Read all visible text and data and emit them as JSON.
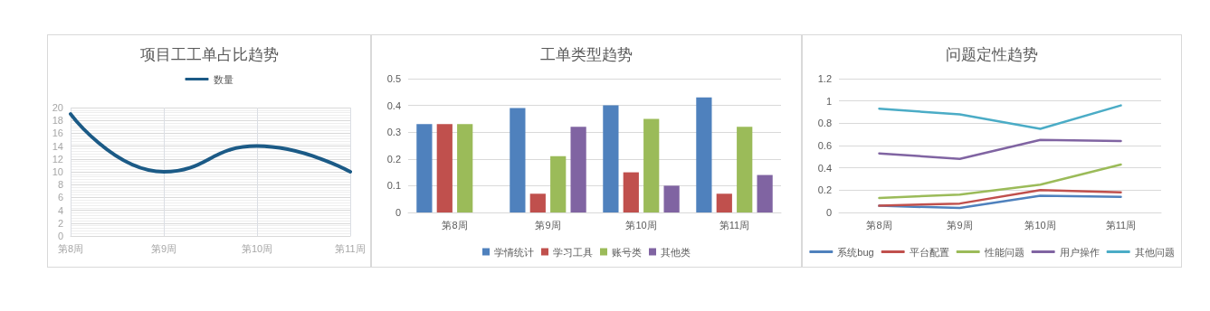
{
  "chart_data": [
    {
      "type": "line",
      "title": "项目工工单占比趋势",
      "categories": [
        "第8周",
        "第9周",
        "第10周",
        "第11周"
      ],
      "series": [
        {
          "name": "数量",
          "color": "#1b5a86",
          "values": [
            19,
            10,
            14,
            10
          ]
        }
      ],
      "ylim": [
        0,
        20
      ],
      "yticks": [
        0,
        2,
        4,
        6,
        8,
        10,
        12,
        14,
        16,
        18,
        20
      ],
      "grid": true,
      "legend": "top",
      "marker": "none",
      "line_style": "solid"
    },
    {
      "type": "bar",
      "title": "工单类型趋势",
      "categories": [
        "第8周",
        "第9周",
        "第10周",
        "第11周"
      ],
      "series": [
        {
          "name": "学情统计",
          "color": "#4f81bd",
          "values": [
            0.33,
            0.39,
            0.4,
            0.43
          ]
        },
        {
          "name": "学习工具",
          "color": "#c0504d",
          "values": [
            0.33,
            0.07,
            0.15,
            0.07
          ]
        },
        {
          "name": "账号类",
          "color": "#9bbb59",
          "values": [
            0.33,
            0.21,
            0.35,
            0.32
          ]
        },
        {
          "name": "其他类",
          "color": "#8064a2",
          "values": [
            0,
            0.32,
            0.1,
            0.14
          ]
        }
      ],
      "ylim": [
        0,
        0.5
      ],
      "yticks": [
        0,
        0.1,
        0.2,
        0.3,
        0.4,
        0.5
      ],
      "grid": "y",
      "legend": "bottom"
    },
    {
      "type": "line",
      "title": "问题定性趋势",
      "categories": [
        "第8周",
        "第9周",
        "第10周",
        "第11周"
      ],
      "series": [
        {
          "name": "系统bug",
          "color": "#4f81bd",
          "values": [
            0.06,
            0.04,
            0.15,
            0.14
          ]
        },
        {
          "name": "平台配置",
          "color": "#c0504d",
          "values": [
            0.06,
            0.08,
            0.2,
            0.18
          ]
        },
        {
          "name": "性能问题",
          "color": "#9bbb59",
          "values": [
            0.13,
            0.16,
            0.25,
            0.43
          ]
        },
        {
          "name": "用户操作",
          "color": "#8064a2",
          "values": [
            0.53,
            0.48,
            0.65,
            0.64
          ]
        },
        {
          "name": "其他问题",
          "color": "#4bacc6",
          "values": [
            0.93,
            0.88,
            0.75,
            0.96
          ]
        }
      ],
      "ylim": [
        0,
        1.2
      ],
      "yticks": [
        0,
        0.2,
        0.4,
        0.6,
        0.8,
        1,
        1.2
      ],
      "grid": "y",
      "legend": "bottom",
      "marker": "none",
      "line_style": "solid"
    }
  ]
}
